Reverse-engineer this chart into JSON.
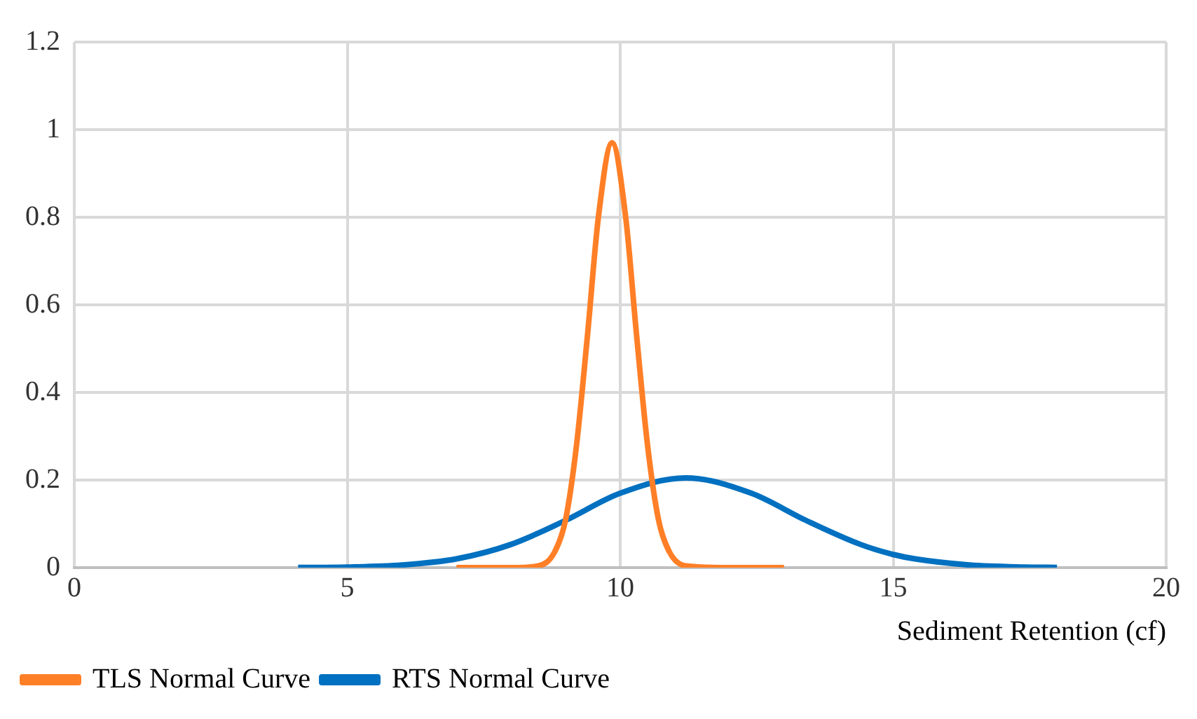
{
  "chart_data": {
    "type": "line",
    "xlabel": "Sediment Retention (cf)",
    "xlim": [
      0,
      20
    ],
    "xticks": [
      0,
      5,
      10,
      15,
      20
    ],
    "ylim": [
      0,
      1.2
    ],
    "yticks": [
      0,
      0.2,
      0.4,
      0.6,
      0.8,
      1,
      1.2
    ],
    "grid": true,
    "legend": "bottom left",
    "marker": "none",
    "line_style": "solid",
    "series": [
      {
        "name": "TLS Normal Curve",
        "color": "#ff7f27",
        "x": [
          7,
          8,
          8.5,
          8.8,
          9,
          9.2,
          9.4,
          9.6,
          9.85,
          10.1,
          10.3,
          10.5,
          10.7,
          10.9,
          11.2,
          12,
          13
        ],
        "values": [
          0,
          0,
          0.004,
          0.036,
          0.11,
          0.28,
          0.53,
          0.8,
          0.97,
          0.8,
          0.53,
          0.28,
          0.11,
          0.036,
          0.004,
          0,
          0
        ]
      },
      {
        "name": "RTS Normal Curve",
        "color": "#0070c0",
        "x": [
          4.1,
          5,
          6,
          7,
          8,
          9,
          10,
          11.2,
          12.4,
          13.4,
          14.4,
          15,
          15.4,
          16.4,
          17.4,
          18
        ],
        "values": [
          0.0003,
          0.0013,
          0.006,
          0.02,
          0.053,
          0.108,
          0.17,
          0.205,
          0.17,
          0.108,
          0.053,
          0.03,
          0.02,
          0.006,
          0.0013,
          0.0005
        ]
      }
    ]
  }
}
